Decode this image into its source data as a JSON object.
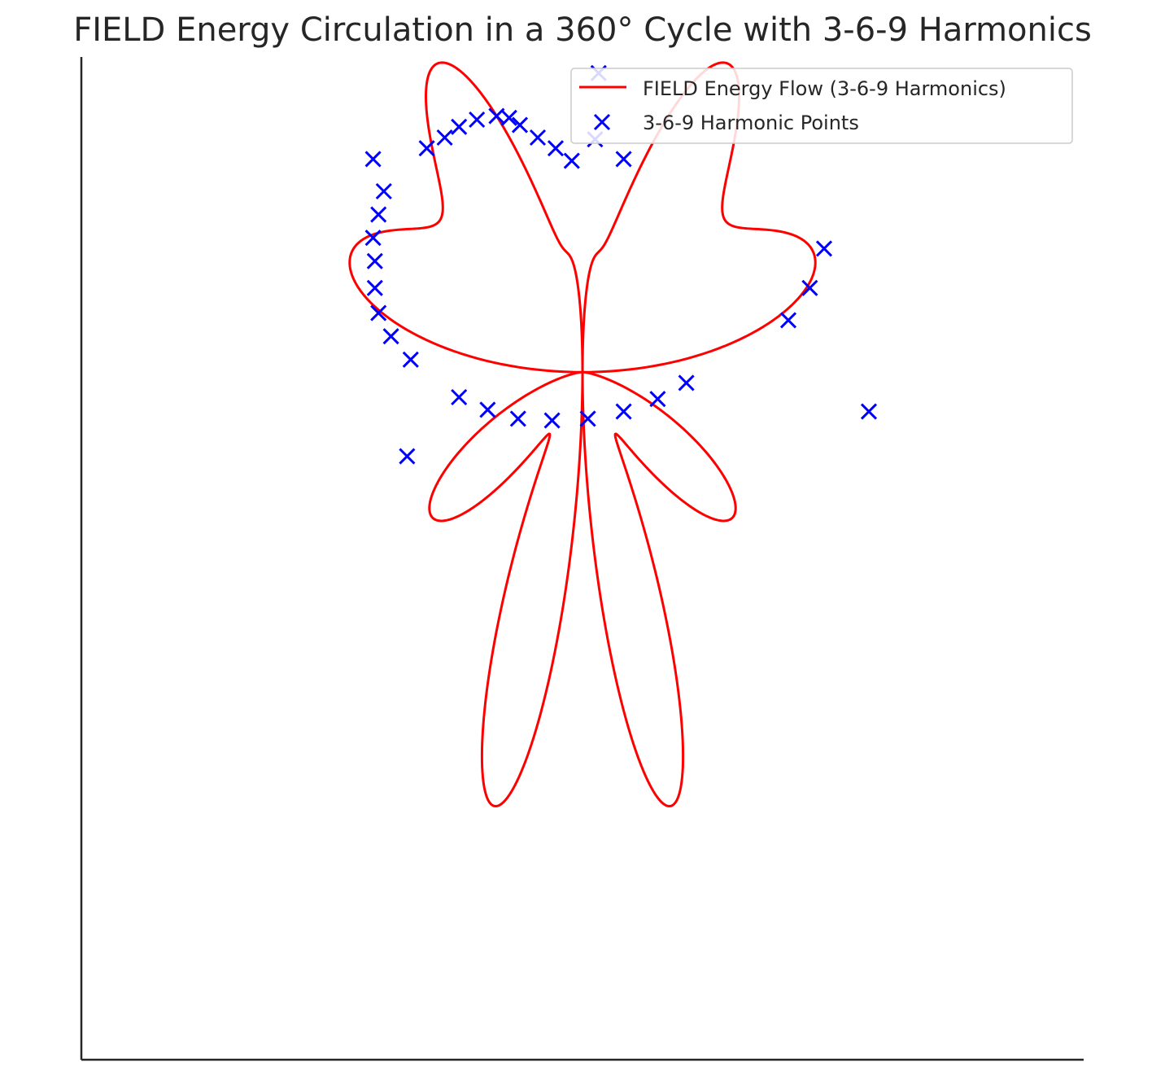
{
  "chart_data": {
    "type": "line",
    "title": "FIELD Energy Circulation in a 360° Cycle with 3-6-9 Harmonics",
    "xlabel": "",
    "ylabel": "",
    "xlim": [
      -1.4,
      1.4
    ],
    "ylim": [
      -1.4,
      1.4
    ],
    "axes_visible": [
      "left",
      "bottom"
    ],
    "ticks_visible": false,
    "grid": false,
    "legend": {
      "position": "upper right",
      "entries": [
        {
          "label": "FIELD Energy Flow (3-6-9 Harmonics)",
          "marker": "line",
          "color": "#ff0000"
        },
        {
          "label": "3-6-9 Harmonic Points",
          "marker": "x",
          "color": "#0000ff"
        }
      ]
    },
    "series": [
      {
        "name": "FIELD Energy Flow (3-6-9 Harmonics)",
        "kind": "curve",
        "color": "#ff0000",
        "formula": {
          "r": "sin(2*theta) + 0.3*sin(3*theta) + 0.3*sin(6*theta) + 0.3*sin(9*theta)",
          "x": "r*cos(theta)",
          "y": "r*sin(theta)",
          "theta_range": [
            0,
            360
          ],
          "theta_unit": "degrees",
          "samples": 1000
        }
      },
      {
        "name": "3-6-9 Harmonic Points",
        "kind": "scatter",
        "marker": "x",
        "color": "#0000ff",
        "points": [
          [
            0.045,
            1.355
          ],
          [
            0.035,
            1.17
          ],
          [
            0.115,
            1.115
          ],
          [
            -0.03,
            1.11
          ],
          [
            -0.075,
            1.145
          ],
          [
            -0.125,
            1.175
          ],
          [
            -0.175,
            1.21
          ],
          [
            -0.205,
            1.23
          ],
          [
            -0.24,
            1.235
          ],
          [
            -0.295,
            1.225
          ],
          [
            -0.345,
            1.205
          ],
          [
            -0.385,
            1.175
          ],
          [
            -0.435,
            1.145
          ],
          [
            -0.585,
            1.115
          ],
          [
            -0.555,
            1.025
          ],
          [
            -0.57,
            0.96
          ],
          [
            -0.585,
            0.895
          ],
          [
            -0.58,
            0.83
          ],
          [
            -0.58,
            0.755
          ],
          [
            -0.57,
            0.685
          ],
          [
            -0.535,
            0.62
          ],
          [
            -0.48,
            0.555
          ],
          [
            -0.345,
            0.45
          ],
          [
            -0.265,
            0.415
          ],
          [
            -0.18,
            0.39
          ],
          [
            -0.085,
            0.385
          ],
          [
            0.015,
            0.39
          ],
          [
            0.115,
            0.41
          ],
          [
            0.21,
            0.445
          ],
          [
            0.29,
            0.49
          ],
          [
            0.575,
            0.665
          ],
          [
            0.635,
            0.755
          ],
          [
            0.675,
            0.865
          ],
          [
            0.8,
            0.41
          ],
          [
            -0.49,
            0.285
          ]
        ]
      }
    ]
  }
}
